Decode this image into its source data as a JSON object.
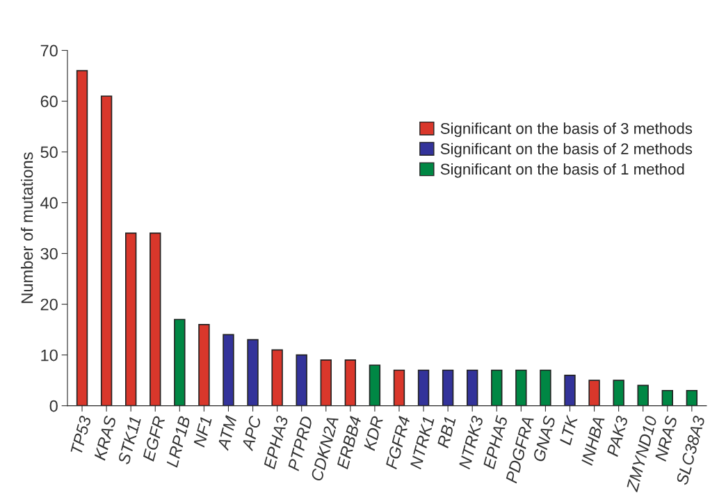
{
  "chart_data": {
    "type": "bar",
    "ylabel": "Number of mutations",
    "categories": [
      "TP53",
      "KRAS",
      "STK11",
      "EGFR",
      "LRP1B",
      "NF1",
      "ATM",
      "APC",
      "EPHA3",
      "PTPRD",
      "CDKN2A",
      "ERBB4",
      "KDR",
      "FGFR4",
      "NTRK1",
      "RB1",
      "NTRK3",
      "EPHA5",
      "PDGFRA",
      "GNAS",
      "LTK",
      "INHBA",
      "PAK3",
      "ZMYND10",
      "NRAS",
      "SLC38A3"
    ],
    "series": [
      {
        "name": "Significant on the basis of 3 methods",
        "color": "#d9372b",
        "values": [
          66,
          61,
          34,
          34,
          null,
          16,
          null,
          null,
          11,
          null,
          9,
          9,
          null,
          7,
          null,
          null,
          null,
          null,
          null,
          null,
          null,
          5,
          null,
          null,
          null,
          null
        ]
      },
      {
        "name": "Significant on the basis of 2 methods",
        "color": "#33339a",
        "values": [
          null,
          null,
          null,
          null,
          null,
          null,
          14,
          13,
          null,
          10,
          null,
          null,
          null,
          null,
          7,
          7,
          7,
          null,
          null,
          null,
          6,
          null,
          null,
          null,
          null,
          null
        ]
      },
      {
        "name": "Significant on the basis of 1 method",
        "color": "#008744",
        "values": [
          null,
          null,
          null,
          null,
          17,
          null,
          null,
          null,
          null,
          null,
          null,
          null,
          8,
          null,
          null,
          null,
          null,
          7,
          7,
          7,
          null,
          null,
          5,
          4,
          3,
          3
        ]
      }
    ],
    "ylim": [
      0,
      70
    ],
    "yticks": [
      0,
      10,
      20,
      30,
      40,
      50,
      60,
      70
    ],
    "grid": false,
    "legend": "right"
  }
}
